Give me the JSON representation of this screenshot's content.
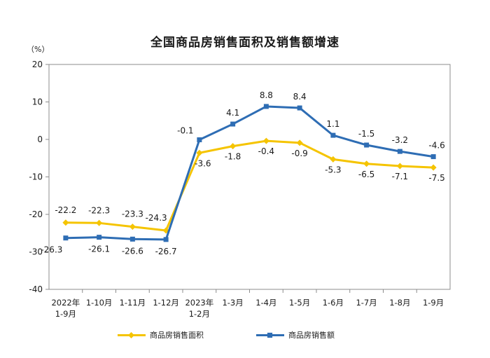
{
  "chart_data": {
    "type": "line",
    "title": "全国商品房销售面积及销售额增速",
    "unit": "（%）",
    "categories": [
      "2022年\n1-9月",
      "1-10月",
      "1-11月",
      "1-12月",
      "2023年\n1-2月",
      "1-3月",
      "1-4月",
      "1-5月",
      "1-6月",
      "1-7月",
      "1-8月",
      "1-9月"
    ],
    "ylim": [
      -40,
      20
    ],
    "yticks": [
      20,
      10,
      0,
      -10,
      -20,
      -30,
      -40
    ],
    "series": [
      {
        "name": "商品房销售面积",
        "color": "#f5c400",
        "marker": "diamond",
        "values": [
          -22.2,
          -22.3,
          -23.3,
          -24.3,
          -3.6,
          -1.8,
          -0.4,
          -0.9,
          -5.3,
          -6.5,
          -7.1,
          -7.5
        ]
      },
      {
        "name": "商品房销售额",
        "color": "#2e6db4",
        "marker": "square",
        "values": [
          -26.3,
          -26.1,
          -26.6,
          -26.7,
          -0.1,
          4.1,
          8.8,
          8.4,
          1.1,
          -1.5,
          -3.2,
          -4.6
        ]
      }
    ],
    "legend_position": "bottom",
    "grid": false
  }
}
